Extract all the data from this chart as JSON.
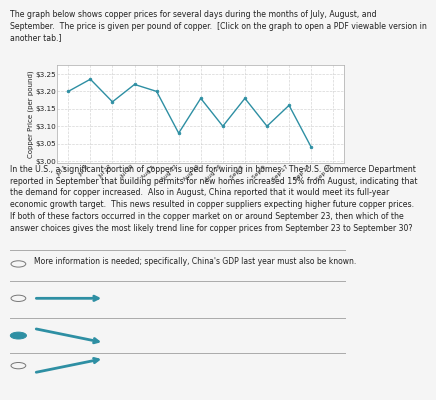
{
  "ylabel": "Copper Price (per pound)",
  "x_labels": [
    "Jul 1",
    "Jul 8",
    "Jul 22",
    "Jul 29",
    "Aug 5",
    "Aug 12",
    "Aug 19",
    "Aug 26",
    "Sep 2",
    "Sep 9",
    "Sep 17",
    "Sep 23",
    "Sep 30"
  ],
  "y_values": [
    3.2,
    3.235,
    3.17,
    3.22,
    3.2,
    3.08,
    3.18,
    3.1,
    3.18,
    3.1,
    3.16,
    3.04,
    null
  ],
  "ylim": [
    2.995,
    3.275
  ],
  "yticks": [
    3.0,
    3.05,
    3.1,
    3.15,
    3.2,
    3.25
  ],
  "ytick_labels": [
    "$3.00",
    "$3.05",
    "$3.10",
    "$3.15",
    "$3.20",
    "$3.25"
  ],
  "line_color": "#2e8fa3",
  "marker_color": "#2e8fa3",
  "grid_color": "#cccccc",
  "bg_color": "#f5f5f5",
  "font_color": "#222222",
  "intro_text": "The graph below shows copper prices for several days during the months of July, August, and\nSeptember.  The price is given per pound of copper.  [Click on the graph to open a PDF viewable version in\nanother tab.]",
  "body_text": "In the U.S., a significant portion of copper is used for wiring in homes.  The U.S. Commerce Department\nreported in September that building permits for new homes increased 15% from August, indicating that\nthe demand for copper increased.  Also in August, China reported that it would meet its full-year\neconomic growth target.  This news resulted in copper suppliers expecting higher future copper prices.\nIf both of these factors occurred in the copper market on or around September 23, then which of the\nanswer choices gives the most likely trend line for copper prices from September 23 to September 30?",
  "answer_text": "More information is needed; specifically, China's GDP last year must also be known."
}
